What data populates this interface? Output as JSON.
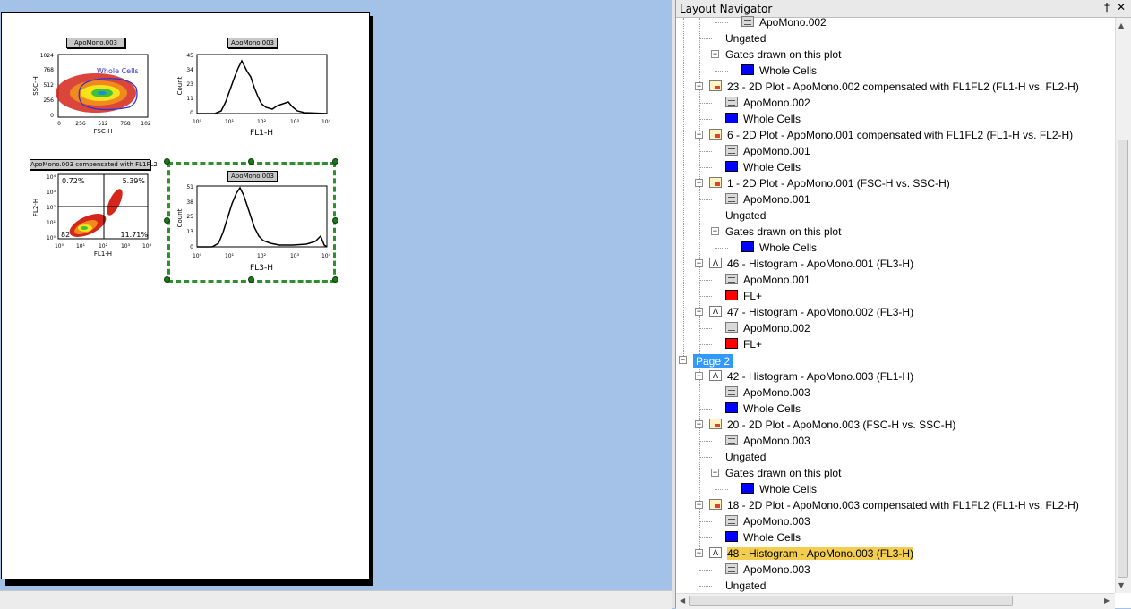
{
  "navigator": {
    "title": "Layout Navigator",
    "pin_glyph": "†",
    "close_glyph": "✕",
    "rows": [
      {
        "level": 3,
        "icon": "data",
        "label": "ApoMono.002",
        "exp": ""
      },
      {
        "level": 2,
        "icon": "",
        "label": "Ungated",
        "exp": ""
      },
      {
        "level": 2,
        "icon": "",
        "label": "Gates drawn on this plot",
        "exp": "−"
      },
      {
        "level": 3,
        "icon": "blue",
        "label": "Whole Cells",
        "exp": ""
      },
      {
        "level": 1,
        "icon": "plot2d",
        "label": "23 - 2D Plot - ApoMono.002 compensated with FL1FL2 (FL1-H vs. FL2-H)",
        "exp": "−"
      },
      {
        "level": 2,
        "icon": "data",
        "label": "ApoMono.002",
        "exp": ""
      },
      {
        "level": 2,
        "icon": "blue",
        "label": "Whole Cells",
        "exp": ""
      },
      {
        "level": 1,
        "icon": "plot2d",
        "label": "6 - 2D Plot - ApoMono.001 compensated with FL1FL2 (FL1-H vs. FL2-H)",
        "exp": "−"
      },
      {
        "level": 2,
        "icon": "data",
        "label": "ApoMono.001",
        "exp": ""
      },
      {
        "level": 2,
        "icon": "blue",
        "label": "Whole Cells",
        "exp": ""
      },
      {
        "level": 1,
        "icon": "plot2d",
        "label": "1 - 2D Plot - ApoMono.001 (FSC-H vs. SSC-H)",
        "exp": "−"
      },
      {
        "level": 2,
        "icon": "data",
        "label": "ApoMono.001",
        "exp": ""
      },
      {
        "level": 2,
        "icon": "",
        "label": "Ungated",
        "exp": ""
      },
      {
        "level": 2,
        "icon": "",
        "label": "Gates drawn on this plot",
        "exp": "−"
      },
      {
        "level": 3,
        "icon": "blue",
        "label": "Whole Cells",
        "exp": ""
      },
      {
        "level": 1,
        "icon": "hist",
        "label": "46 - Histogram - ApoMono.001 (FL3-H)",
        "exp": "−"
      },
      {
        "level": 2,
        "icon": "data",
        "label": "ApoMono.001",
        "exp": ""
      },
      {
        "level": 2,
        "icon": "red",
        "label": "FL+",
        "exp": ""
      },
      {
        "level": 1,
        "icon": "hist",
        "label": "47 - Histogram - ApoMono.002 (FL3-H)",
        "exp": "−"
      },
      {
        "level": 2,
        "icon": "data",
        "label": "ApoMono.002",
        "exp": ""
      },
      {
        "level": 2,
        "icon": "red",
        "label": "FL+",
        "exp": ""
      },
      {
        "level": 0,
        "icon": "",
        "label": "Page 2",
        "exp": "−",
        "page": true
      },
      {
        "level": 1,
        "icon": "hist",
        "label": "42 - Histogram - ApoMono.003 (FL1-H)",
        "exp": "−"
      },
      {
        "level": 2,
        "icon": "data",
        "label": "ApoMono.003",
        "exp": ""
      },
      {
        "level": 2,
        "icon": "blue",
        "label": "Whole Cells",
        "exp": ""
      },
      {
        "level": 1,
        "icon": "plot2d",
        "label": "20 - 2D Plot - ApoMono.003 (FSC-H vs. SSC-H)",
        "exp": "−"
      },
      {
        "level": 2,
        "icon": "data",
        "label": "ApoMono.003",
        "exp": ""
      },
      {
        "level": 2,
        "icon": "",
        "label": "Ungated",
        "exp": ""
      },
      {
        "level": 2,
        "icon": "",
        "label": "Gates drawn on this plot",
        "exp": "−"
      },
      {
        "level": 3,
        "icon": "blue",
        "label": "Whole Cells",
        "exp": ""
      },
      {
        "level": 1,
        "icon": "plot2d",
        "label": "18 - 2D Plot - ApoMono.003 compensated with FL1FL2 (FL1-H vs. FL2-H)",
        "exp": "−"
      },
      {
        "level": 2,
        "icon": "data",
        "label": "ApoMono.003",
        "exp": ""
      },
      {
        "level": 2,
        "icon": "blue",
        "label": "Whole Cells",
        "exp": ""
      },
      {
        "level": 1,
        "icon": "hist",
        "label": "48 - Histogram - ApoMono.003 (FL3-H)",
        "exp": "−",
        "selected": true
      },
      {
        "level": 2,
        "icon": "data",
        "label": "ApoMono.003",
        "exp": ""
      },
      {
        "level": 2,
        "icon": "",
        "label": "Ungated",
        "exp": ""
      }
    ]
  },
  "plots": {
    "scatter_fsc": {
      "title": "ApoMono.003",
      "xlabel": "FSC-H",
      "ylabel": "SSC-H",
      "yticks": [
        "1024",
        "768",
        "512",
        "256",
        "0"
      ],
      "xticks": [
        "0",
        "256",
        "512",
        "768",
        "102"
      ],
      "gate_label": "Whole Cells"
    },
    "hist_fl1": {
      "title": "ApoMono.003",
      "xlabel": "FL1-H",
      "ylabel": "Count",
      "yticks": [
        "45",
        "34",
        "23",
        "11",
        "0"
      ],
      "xticks": [
        "10⁰",
        "10¹",
        "10²",
        "10³",
        "10⁴"
      ]
    },
    "scatter_comp": {
      "title": "ApoMono.003 compensated with FL1FL2",
      "xlabel": "FL1-H",
      "ylabel": "FL2-H",
      "yticks": [
        "10⁴",
        "10³",
        "10²",
        "10¹",
        "10⁰"
      ],
      "xticks": [
        "10⁰",
        "10¹",
        "10²",
        "10³",
        "10⁴"
      ],
      "q_ul": "0.72%",
      "q_ur": "5.39%",
      "q_ll": "82",
      "q_lr": "11.71%"
    },
    "hist_fl3": {
      "title": "ApoMono.003",
      "xlabel": "FL3-H",
      "ylabel": "Count",
      "yticks": [
        "51",
        "38",
        "25",
        "13",
        "0"
      ],
      "xticks": [
        "10⁰",
        "10¹",
        "10²",
        "10³",
        "10⁴"
      ]
    }
  }
}
